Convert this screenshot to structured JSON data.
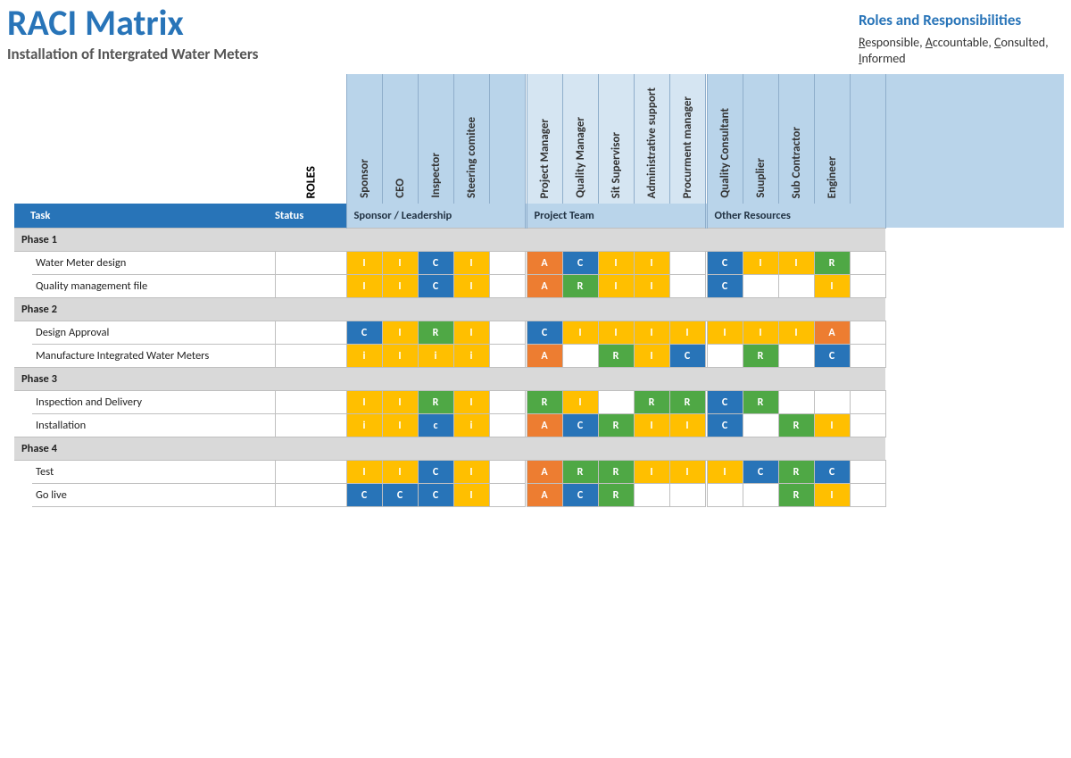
{
  "title": "RACI Matrix",
  "subtitle": "Installation of Intergrated Water Meters",
  "header_right": {
    "heading": "Roles and Responsibilities",
    "legend": [
      "Responsible",
      "Accountable",
      "Consulted",
      "Informed"
    ]
  },
  "columns": {
    "task_label": "Task",
    "status_label": "Status",
    "roles_label": "ROLES"
  },
  "groups": [
    {
      "label": "Sponsor / Leadership",
      "span": 5,
      "roles": [
        "Sponsor",
        "CEO",
        "Inspector",
        "Steering comitee",
        ""
      ]
    },
    {
      "label": "Project Team",
      "span": 5,
      "roles": [
        "Project Manager",
        "Quality Manager",
        "Sit Supervisor",
        "Administrative support",
        "Procurment manager"
      ]
    },
    {
      "label": "Other Resources",
      "span": 5,
      "roles": [
        "Quality Consultant",
        "Suuplier",
        "Sub Contractor",
        "Engineer",
        ""
      ]
    }
  ],
  "phases": [
    {
      "name": "Phase 1",
      "tasks": [
        {
          "name": "Water Meter design",
          "cells": [
            "I",
            "I",
            "C",
            "I",
            "",
            "A",
            "C",
            "I",
            "I",
            "",
            "C",
            "I",
            "I",
            "R",
            ""
          ]
        },
        {
          "name": "Quality management file",
          "cells": [
            "I",
            "I",
            "C",
            "I",
            "",
            "A",
            "R",
            "I",
            "I",
            "",
            "C",
            "",
            "",
            "I",
            ""
          ]
        }
      ]
    },
    {
      "name": "Phase 2",
      "tasks": [
        {
          "name": "Design Approval",
          "cells": [
            "C",
            "I",
            "R",
            "I",
            "",
            "C",
            "I",
            "I",
            "I",
            "I",
            "I",
            "I",
            "I",
            "A",
            ""
          ]
        },
        {
          "name": "Manufacture Integrated Water Meters",
          "cells": [
            "i",
            "I",
            "i",
            "i",
            "",
            "A",
            "",
            "R",
            "I",
            "C",
            "",
            "R",
            "",
            "C",
            ""
          ]
        }
      ]
    },
    {
      "name": "Phase 3",
      "tasks": [
        {
          "name": "Inspection and Delivery",
          "cells": [
            "I",
            "I",
            "R",
            "I",
            "",
            "R",
            "I",
            "",
            "R",
            "R",
            "C",
            "R",
            "",
            "",
            ""
          ]
        },
        {
          "name": "Installation",
          "cells": [
            "i",
            "I",
            "c",
            "i",
            "",
            "A",
            "C",
            "R",
            "I",
            "I",
            "C",
            "",
            "R",
            "I",
            ""
          ]
        }
      ]
    },
    {
      "name": "Phase 4",
      "tasks": [
        {
          "name": "Test",
          "cells": [
            "I",
            "I",
            "C",
            "I",
            "",
            "A",
            "R",
            "R",
            "I",
            "I",
            "I",
            "C",
            "R",
            "C",
            ""
          ]
        },
        {
          "name": "Go live",
          "cells": [
            "C",
            "C",
            "C",
            "I",
            "",
            "A",
            "C",
            "R",
            "",
            "",
            "",
            "",
            "R",
            "I",
            ""
          ]
        }
      ]
    }
  ],
  "colors": {
    "A": "#ed7d31",
    "R": "#4fa845",
    "C": "#2874b8",
    "I": "#ffbf00"
  }
}
